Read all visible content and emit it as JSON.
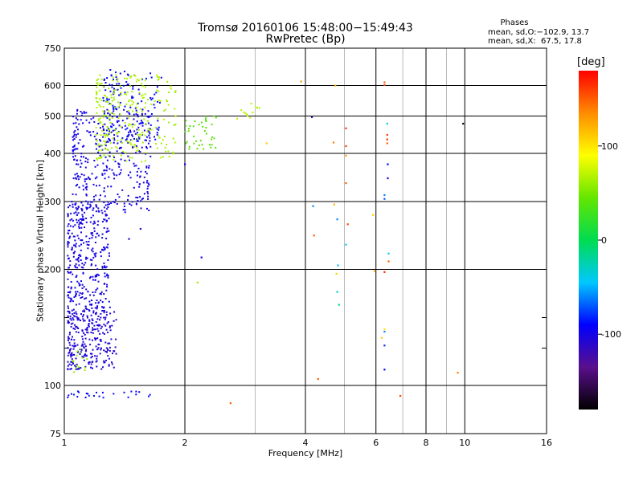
{
  "chart_data": {
    "type": "scatter",
    "title": "Tromsø 20160106 15:48:00−15:49:43",
    "subtitle": "RwPretec (Bp)",
    "xlabel": "Frequency [MHz]",
    "ylabel": "Stationary phase Virtual Height [km]",
    "x_scale": "log",
    "y_scale": "log",
    "xlim": [
      1,
      16
    ],
    "ylim": [
      75,
      750
    ],
    "x_major_ticks": [
      1,
      2,
      4,
      6,
      8,
      10,
      16
    ],
    "x_minor_ticks": [
      3,
      5,
      7,
      9
    ],
    "y_ticks": [
      75,
      100,
      200,
      300,
      400,
      500,
      600,
      750
    ],
    "y_minor_ticks": [
      125,
      150
    ],
    "grid": true,
    "legend": {
      "title": "Phases",
      "lines": [
        "mean, sd,O:−102.9, 13.7",
        "mean, sd,X:  67.5, 17.8"
      ],
      "placement": "top-right"
    },
    "colorbar": {
      "label": "[deg]",
      "range": [
        -180,
        180
      ],
      "ticks": [
        100,
        0,
        -100
      ],
      "colors": [
        "#000000",
        "#5a0f8c",
        "#0000ff",
        "#00c8ff",
        "#00dc50",
        "#64e600",
        "#ffff00",
        "#ff8c00",
        "#ff0000"
      ]
    },
    "series": [
      {
        "cluster": "o-trace-low",
        "color_deg": -105,
        "x": [
          1.02,
          1.35
        ],
        "y": [
          110,
          160
        ],
        "count": 300
      },
      {
        "cluster": "o-trace-mid",
        "color_deg": -100,
        "x": [
          1.02,
          1.3
        ],
        "y": [
          160,
          300
        ],
        "count": 320
      },
      {
        "cluster": "o-trace-f",
        "color_deg": -100,
        "x": [
          1.05,
          1.65
        ],
        "y": [
          280,
          520
        ],
        "count": 360
      },
      {
        "cluster": "o-trace-top",
        "color_deg": -90,
        "x": [
          1.25,
          1.75
        ],
        "y": [
          430,
          660
        ],
        "count": 140
      },
      {
        "cluster": "x-trace",
        "color_deg": 65,
        "x": [
          1.2,
          1.9
        ],
        "y": [
          380,
          640
        ],
        "count": 260
      },
      {
        "cluster": "x-trace-tail",
        "color_deg": 40,
        "x": [
          2.0,
          2.4
        ],
        "y": [
          410,
          500
        ],
        "count": 40
      },
      {
        "cluster": "x-scatter-3mhz",
        "color_deg": 70,
        "x": [
          2.7,
          3.1
        ],
        "y": [
          490,
          545
        ],
        "count": 12
      },
      {
        "cluster": "e-region",
        "color_deg": -90,
        "x": [
          1.02,
          1.7
        ],
        "y": [
          93,
          97
        ],
        "count": 25
      },
      {
        "cluster": "low-trace-tail",
        "color_deg": 60,
        "x": [
          1.05,
          1.15
        ],
        "y": [
          108,
          125
        ],
        "count": 15
      }
    ],
    "isolated_points": [
      {
        "x": 1.45,
        "y": 240,
        "color_deg": -110
      },
      {
        "x": 1.55,
        "y": 255,
        "color_deg": -110
      },
      {
        "x": 2.2,
        "y": 215,
        "color_deg": -100
      },
      {
        "x": 2.15,
        "y": 185,
        "color_deg": 60
      },
      {
        "x": 2.0,
        "y": 375,
        "color_deg": -100
      },
      {
        "x": 2.6,
        "y": 90,
        "color_deg": 150
      },
      {
        "x": 3.2,
        "y": 425,
        "color_deg": 110
      },
      {
        "x": 3.9,
        "y": 615,
        "color_deg": 130
      },
      {
        "x": 4.15,
        "y": 497,
        "color_deg": -120
      },
      {
        "x": 4.18,
        "y": 292,
        "color_deg": -60
      },
      {
        "x": 4.2,
        "y": 245,
        "color_deg": 150
      },
      {
        "x": 4.3,
        "y": 104,
        "color_deg": 150
      },
      {
        "x": 4.75,
        "y": 600,
        "color_deg": 120
      },
      {
        "x": 4.7,
        "y": 427,
        "color_deg": 140
      },
      {
        "x": 4.72,
        "y": 295,
        "color_deg": 120
      },
      {
        "x": 4.8,
        "y": 270,
        "color_deg": -60
      },
      {
        "x": 4.82,
        "y": 205,
        "color_deg": -50
      },
      {
        "x": 4.78,
        "y": 195,
        "color_deg": 110
      },
      {
        "x": 4.8,
        "y": 175,
        "color_deg": -30
      },
      {
        "x": 4.85,
        "y": 162,
        "color_deg": -20
      },
      {
        "x": 5.05,
        "y": 465,
        "color_deg": 165
      },
      {
        "x": 5.05,
        "y": 418,
        "color_deg": 160
      },
      {
        "x": 5.05,
        "y": 395,
        "color_deg": 130
      },
      {
        "x": 5.05,
        "y": 335,
        "color_deg": 150
      },
      {
        "x": 5.1,
        "y": 262,
        "color_deg": 160
      },
      {
        "x": 5.05,
        "y": 232,
        "color_deg": -40
      },
      {
        "x": 5.9,
        "y": 277,
        "color_deg": 110
      },
      {
        "x": 5.95,
        "y": 198,
        "color_deg": 120
      },
      {
        "x": 6.3,
        "y": 612,
        "color_deg": 150
      },
      {
        "x": 6.3,
        "y": 602,
        "color_deg": 160
      },
      {
        "x": 6.4,
        "y": 478,
        "color_deg": -30
      },
      {
        "x": 6.4,
        "y": 447,
        "color_deg": 160
      },
      {
        "x": 6.4,
        "y": 435,
        "color_deg": 165
      },
      {
        "x": 6.4,
        "y": 425,
        "color_deg": 150
      },
      {
        "x": 6.42,
        "y": 375,
        "color_deg": -90
      },
      {
        "x": 6.42,
        "y": 345,
        "color_deg": -100
      },
      {
        "x": 6.3,
        "y": 312,
        "color_deg": -60
      },
      {
        "x": 6.3,
        "y": 305,
        "color_deg": -70
      },
      {
        "x": 6.45,
        "y": 220,
        "color_deg": -40
      },
      {
        "x": 6.45,
        "y": 210,
        "color_deg": 150
      },
      {
        "x": 6.3,
        "y": 197,
        "color_deg": 170
      },
      {
        "x": 6.3,
        "y": 138,
        "color_deg": -60
      },
      {
        "x": 6.3,
        "y": 127,
        "color_deg": -80
      },
      {
        "x": 6.3,
        "y": 110,
        "color_deg": -90
      },
      {
        "x": 6.2,
        "y": 133,
        "color_deg": 110
      },
      {
        "x": 6.3,
        "y": 140,
        "color_deg": 100
      },
      {
        "x": 6.9,
        "y": 94,
        "color_deg": 160
      },
      {
        "x": 9.6,
        "y": 108,
        "color_deg": 140
      },
      {
        "x": 9.9,
        "y": 478,
        "color_deg": -170
      }
    ]
  }
}
